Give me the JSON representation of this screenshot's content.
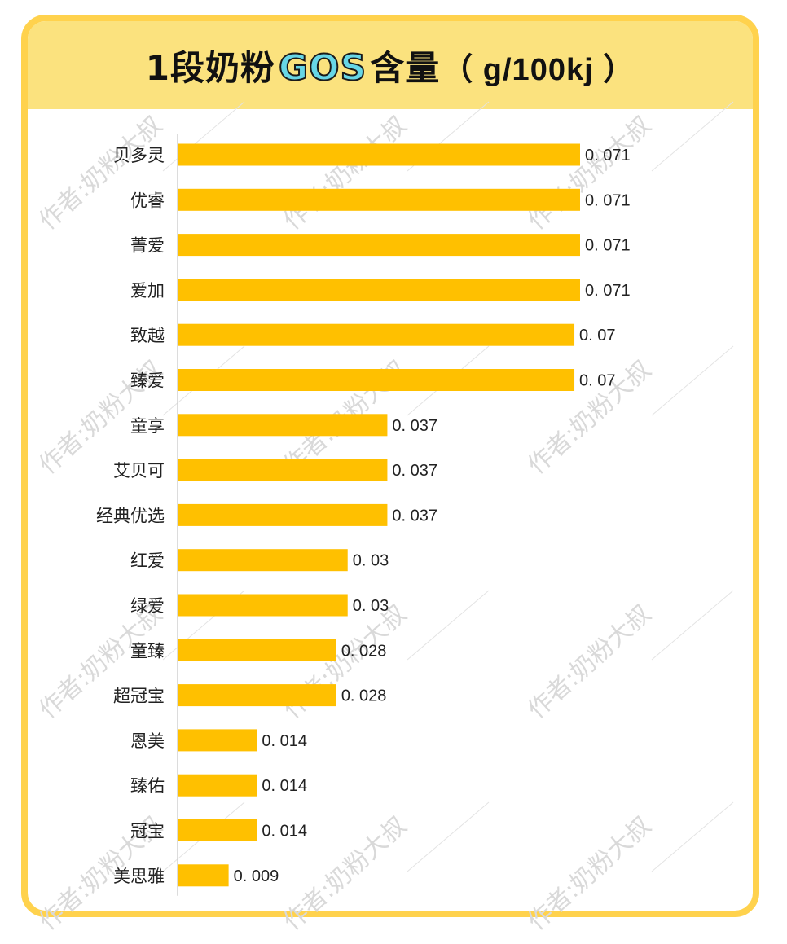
{
  "title": {
    "prefix": "1段奶粉",
    "highlight": "GOS",
    "suffix": "含量",
    "unit": "（ g/100kj ）"
  },
  "watermark": "作者:奶粉大叔",
  "colors": {
    "bar": "#FFC000",
    "frame": "#FFD24D",
    "header": "#FBE27E",
    "highlight": "#67D6E6"
  },
  "chart_data": {
    "type": "bar",
    "orientation": "horizontal",
    "categories": [
      "贝多灵",
      "优睿",
      "菁爱",
      "爱加",
      "致越",
      "臻爱",
      "童享",
      "艾贝可",
      "经典优选",
      "红爱",
      "绿爱",
      "童臻",
      "超冠宝",
      "恩美",
      "臻佑",
      "冠宝",
      "美思雅"
    ],
    "values": [
      0.071,
      0.071,
      0.071,
      0.071,
      0.07,
      0.07,
      0.037,
      0.037,
      0.037,
      0.03,
      0.03,
      0.028,
      0.028,
      0.014,
      0.014,
      0.014,
      0.009
    ],
    "value_labels": [
      "0. 071",
      "0. 071",
      "0. 071",
      "0. 071",
      "0. 07",
      "0. 07",
      "0. 037",
      "0. 037",
      "0. 037",
      "0. 03",
      "0. 03",
      "0. 028",
      "0. 028",
      "0. 014",
      "0. 014",
      "0. 014",
      "0. 009"
    ],
    "xlim": [
      0,
      0.071
    ],
    "grid": false,
    "legend": "none"
  }
}
